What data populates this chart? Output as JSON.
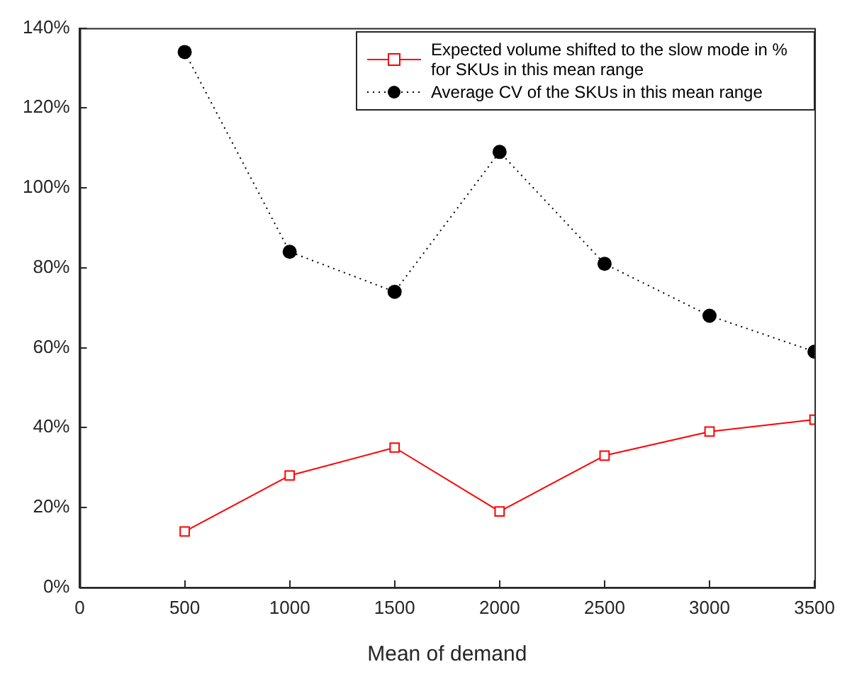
{
  "chart_data": {
    "type": "line",
    "xlabel": "Mean of demand",
    "x": [
      500,
      1000,
      1500,
      2000,
      2500,
      3000,
      3500
    ],
    "xlim": [
      0,
      3500
    ],
    "xticks": [
      0,
      500,
      1000,
      1500,
      2000,
      2500,
      3000,
      3500
    ],
    "ylim": [
      0,
      140
    ],
    "yticks": [
      {
        "value": 0,
        "label": "0%"
      },
      {
        "value": 20,
        "label": "20%"
      },
      {
        "value": 40,
        "label": "40%"
      },
      {
        "value": 60,
        "label": "60%"
      },
      {
        "value": 80,
        "label": "80%"
      },
      {
        "value": 100,
        "label": "100%"
      },
      {
        "value": 120,
        "label": "120%"
      },
      {
        "value": 140,
        "label": "140%"
      }
    ],
    "grid": false,
    "legend": "top right",
    "series": [
      {
        "name": "Expected volume shifted to the slow mode in % for SKUs in this mean range",
        "color": "#ff0000",
        "marker": "square",
        "line_style": "solid",
        "values": [
          14,
          28,
          35,
          19,
          33,
          39,
          42
        ]
      },
      {
        "name": "Average CV of the SKUs in this mean range",
        "color": "#000000",
        "marker": "circle",
        "line_style": "dotted",
        "values": [
          134,
          84,
          74,
          109,
          81,
          68,
          59
        ]
      }
    ]
  }
}
